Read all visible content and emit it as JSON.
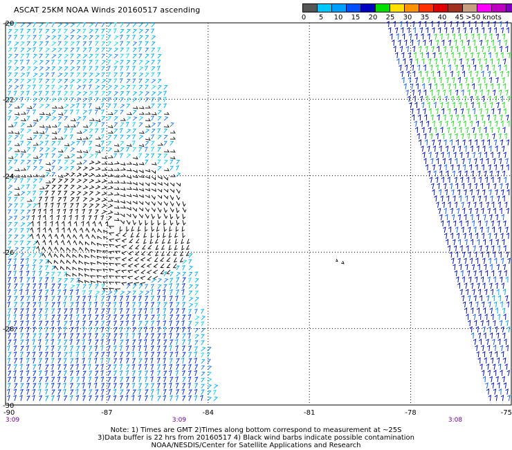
{
  "title": "ASCAT 25KM NOAA Winds 20160517 ascending",
  "legend": {
    "colors": [
      "#555555",
      "#00c8ff",
      "#00a0ff",
      "#0050ff",
      "#0000c0",
      "#00e000",
      "#ffe000",
      "#ff9000",
      "#ff3000",
      "#e00000",
      "#a03020",
      "#c8a080",
      "#ff00ff",
      "#c000c0",
      "#8000c0",
      "#5000a0"
    ],
    "tick_labels": [
      "0",
      "5",
      "10",
      "15",
      "20",
      "25",
      "30",
      "35",
      "40",
      "45",
      ">50 knots"
    ]
  },
  "axes": {
    "lat_ticks": [
      "-20",
      "-22",
      "-24",
      "-26",
      "-28",
      "-30"
    ],
    "lon_ticks": [
      "-90",
      "-87",
      "-84",
      "-81",
      "-78",
      "-75"
    ],
    "lon_range": [
      -90,
      -75
    ],
    "lat_range": [
      -30,
      -20
    ]
  },
  "pass_times": [
    "3:09",
    "3:09",
    "3:08"
  ],
  "notes": [
    "Note: 1) Times are GMT 2)Times along bottom correspond to measurement at ~25S",
    "3)Data buffer is 22 hrs from 20160517 4) Black wind barbs indicate possible contamination",
    "NOAA/NESDIS/Center for Satellite Applications and Research"
  ]
}
